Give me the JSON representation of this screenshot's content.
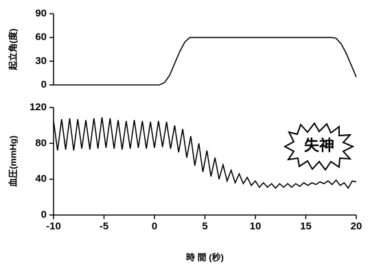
{
  "chart_data": [
    {
      "type": "line",
      "ylabel": "起立角(度)",
      "xlim": [
        -10,
        20
      ],
      "ylim": [
        0,
        90
      ],
      "yticks": [
        0,
        30,
        60,
        90
      ],
      "color": "#000000",
      "x": [
        -10,
        0.5,
        1,
        1.5,
        2,
        2.5,
        3,
        3.5,
        17.5,
        18,
        18.5,
        19,
        19.5,
        20
      ],
      "values": [
        0,
        0,
        3,
        12,
        27,
        42,
        54,
        60,
        60,
        59,
        52,
        40,
        25,
        10
      ]
    },
    {
      "type": "line",
      "ylabel": "血圧(mmHg)",
      "xlabel": "時 間 (秒)",
      "annotation": "失神",
      "xlim": [
        -10,
        20
      ],
      "xticks": [
        -10,
        -5,
        0,
        5,
        10,
        15,
        20
      ],
      "ylim": [
        0,
        120
      ],
      "yticks": [
        0,
        40,
        80,
        120
      ],
      "color": "#000000",
      "x": [
        -10,
        -9.6,
        -9.2,
        -8.8,
        -8.4,
        -8,
        -7.6,
        -7.2,
        -6.8,
        -6.4,
        -6,
        -5.6,
        -5.2,
        -4.8,
        -4.4,
        -4,
        -3.6,
        -3.2,
        -2.8,
        -2.4,
        -2,
        -1.6,
        -1.2,
        -0.8,
        -0.4,
        0,
        0.4,
        0.8,
        1.2,
        1.6,
        2,
        2.4,
        2.8,
        3.2,
        3.6,
        4,
        4.4,
        4.8,
        5.2,
        5.6,
        6,
        6.4,
        6.8,
        7.2,
        7.6,
        8,
        8.4,
        8.8,
        9.2,
        9.6,
        10,
        10.4,
        10.8,
        11.2,
        11.6,
        12,
        12.4,
        12.8,
        13.2,
        13.6,
        14,
        14.4,
        14.8,
        15.2,
        15.6,
        16,
        16.4,
        16.8,
        17.2,
        17.6,
        18,
        18.4,
        18.8,
        19.2,
        19.6,
        20
      ],
      "values": [
        105,
        72,
        107,
        73,
        108,
        72,
        107,
        74,
        106,
        73,
        108,
        74,
        109,
        75,
        108,
        74,
        106,
        73,
        105,
        74,
        106,
        75,
        105,
        74,
        104,
        75,
        105,
        76,
        104,
        74,
        100,
        70,
        96,
        64,
        88,
        55,
        80,
        48,
        72,
        43,
        64,
        40,
        56,
        38,
        50,
        36,
        46,
        35,
        42,
        33,
        38,
        31,
        36,
        31,
        35,
        30,
        35,
        31,
        35,
        31,
        35,
        32,
        36,
        33,
        36,
        34,
        37,
        35,
        38,
        34,
        39,
        33,
        36,
        30,
        38,
        37
      ]
    }
  ]
}
